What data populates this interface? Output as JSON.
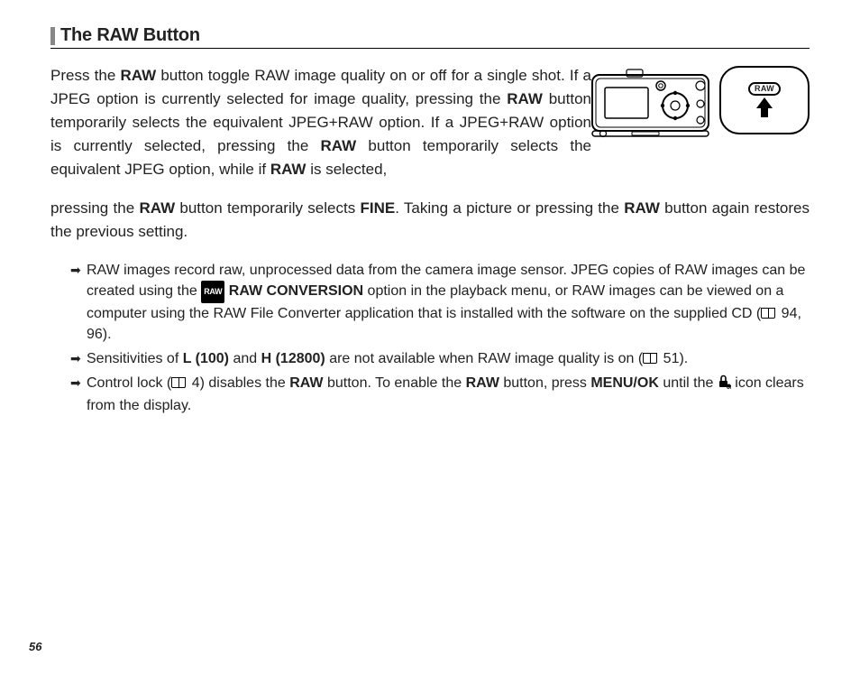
{
  "heading": "The RAW Button",
  "para_parts": [
    {
      "text": "Press the ",
      "bold": false
    },
    {
      "text": "RAW",
      "bold": true
    },
    {
      "text": " button toggle RAW image quality on or off for a single shot.  If a JPEG option is currently selected for image quality, pressing the ",
      "bold": false
    },
    {
      "text": "RAW",
      "bold": true
    },
    {
      "text": " button temporarily selects the equivalent JPEG+RAW option. If a JPEG+RAW option is currently selected, pressing the ",
      "bold": false
    },
    {
      "text": "RAW",
      "bold": true
    },
    {
      "text": " button temporarily selects the equivalent JPEG option, while if ",
      "bold": false
    },
    {
      "text": "RAW",
      "bold": true
    },
    {
      "text": " is selected,",
      "bold": false
    }
  ],
  "para_parts_2": [
    {
      "text": "pressing the ",
      "bold": false
    },
    {
      "text": "RAW",
      "bold": true
    },
    {
      "text": " button temporarily selects ",
      "bold": false
    },
    {
      "text": "FINE",
      "bold": true
    },
    {
      "text": ".  Taking a picture or pressing the ",
      "bold": false
    },
    {
      "text": "RAW",
      "bold": true
    },
    {
      "text": " button again restores the previous setting.",
      "bold": false
    }
  ],
  "bubble_label": "RAW",
  "bullet1_parts": [
    {
      "text": "RAW images record raw, unprocessed data from the camera image sensor.  JPEG copies of RAW images can be created using the "
    },
    {
      "type": "rawchip"
    },
    {
      "text": " "
    },
    {
      "text": "RAW CONVERSION",
      "bold": true
    },
    {
      "text": " option in the playback menu, or RAW images can be viewed on a computer using the RAW File Converter application that is installed with the software on the supplied CD ("
    },
    {
      "type": "book"
    },
    {
      "text": " 94, 96)."
    }
  ],
  "bullet2_parts": [
    {
      "text": "Sensitivities of "
    },
    {
      "text": "L (100)",
      "bold": true
    },
    {
      "text": " and "
    },
    {
      "text": "H (12800)",
      "bold": true
    },
    {
      "text": " are not available when RAW image quality is on ("
    },
    {
      "type": "book"
    },
    {
      "text": " 51)."
    }
  ],
  "bullet3_parts": [
    {
      "text": "Control lock ("
    },
    {
      "type": "book"
    },
    {
      "text": " 4) disables the "
    },
    {
      "text": "RAW",
      "bold": true
    },
    {
      "text": " button. To enable the "
    },
    {
      "text": "RAW",
      "bold": true
    },
    {
      "text": " button, press "
    },
    {
      "text": "MENU/OK",
      "bold": true
    },
    {
      "text": " until the "
    },
    {
      "type": "lock"
    },
    {
      "text": " icon clears from the display."
    }
  ],
  "page_number": "56",
  "raw_chip_label": "RAW"
}
